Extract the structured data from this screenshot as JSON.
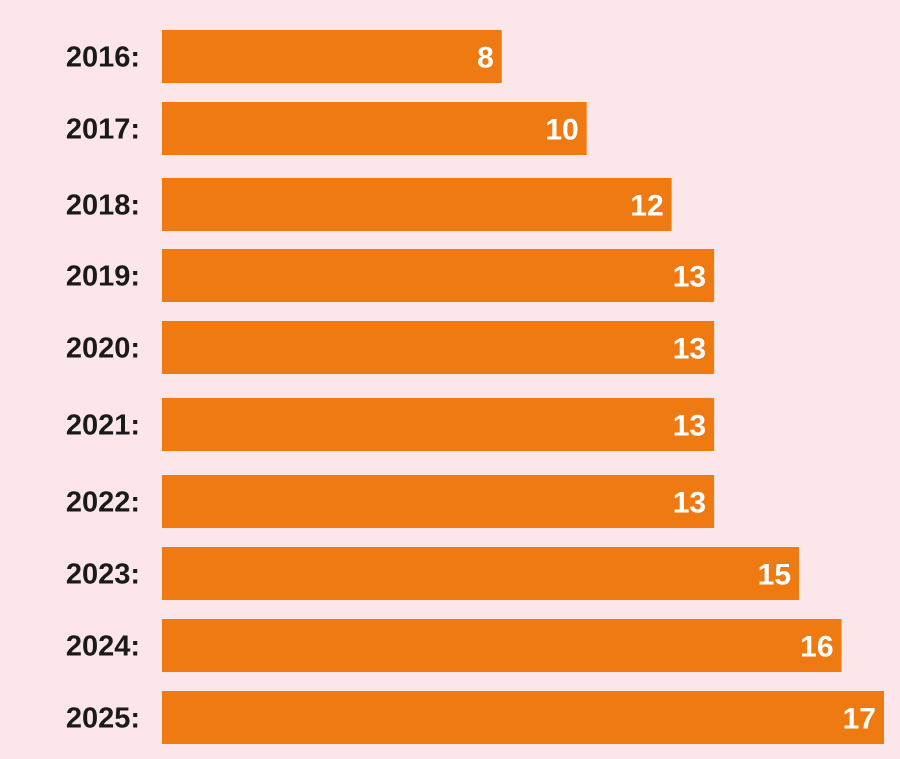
{
  "theme": {
    "background": "#fde6ea",
    "bar_color": "#f07a12",
    "label_color": "#1a1a1a",
    "value_color": "#ffffff"
  },
  "chart_data": {
    "type": "bar",
    "orientation": "horizontal",
    "categories": [
      "2016:",
      "2017:",
      "2018:",
      "2019:",
      "2020:",
      "2021:",
      "2022:",
      "2023:",
      "2024:",
      "2025:"
    ],
    "values": [
      8,
      10,
      12,
      13,
      13,
      13,
      13,
      15,
      16,
      17
    ],
    "data_labels": [
      "8",
      "10",
      "12",
      "13",
      "13",
      "13",
      "13",
      "15",
      "16",
      "17"
    ],
    "title": "",
    "xlabel": "",
    "ylabel": "",
    "xlim": [
      0,
      17
    ],
    "grid": false,
    "legend": "none"
  }
}
